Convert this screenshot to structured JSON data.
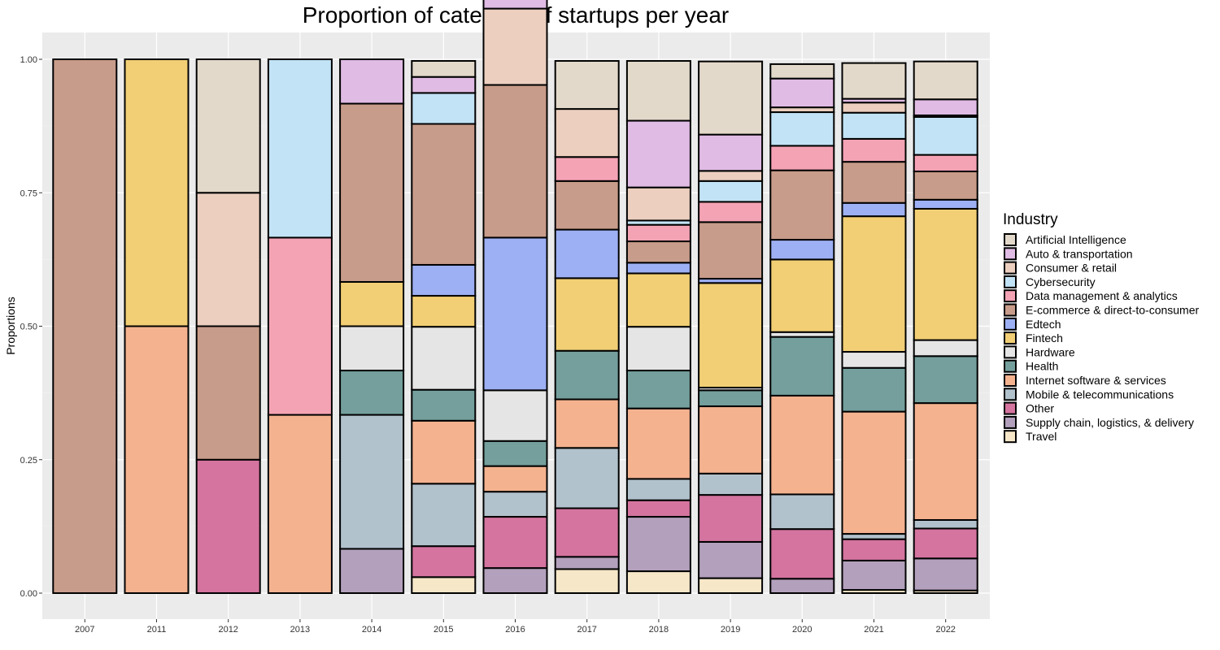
{
  "chart_data": {
    "type": "bar",
    "stacked": true,
    "normalized": true,
    "title": "Proportion of category of startups per year",
    "xlabel": "",
    "ylabel": "Proportions",
    "ylim": [
      0,
      1
    ],
    "y_ticks": [
      "0.00",
      "0.25",
      "0.50",
      "0.75",
      "1.00"
    ],
    "y_tick_values": [
      0,
      0.25,
      0.5,
      0.75,
      1
    ],
    "grid": true,
    "legend_position": "right",
    "legend_title": "Industry",
    "categories": [
      "2007",
      "2011",
      "2012",
      "2013",
      "2014",
      "2015",
      "2016",
      "2017",
      "2018",
      "2019",
      "2020",
      "2021",
      "2022"
    ],
    "series": [
      {
        "name": "Artificial Intelligence",
        "color": "#E3D9CA",
        "values": [
          0,
          0,
          0.25,
          0,
          0,
          0.03,
          0.047,
          0.09,
          0.112,
          0.137,
          0.027,
          0.067,
          0.071
        ]
      },
      {
        "name": "Auto & transportation",
        "color": "#E0BBE4",
        "values": [
          0,
          0,
          0,
          0,
          0.083,
          0.03,
          0.048,
          0,
          0.125,
          0.068,
          0.054,
          0.007,
          0.03
        ]
      },
      {
        "name": "Consumer & retail",
        "color": "#ECCFBF",
        "values": [
          0,
          0,
          0.25,
          0,
          0,
          0,
          0.143,
          0.09,
          0.062,
          0.019,
          0.009,
          0.019,
          0.003
        ]
      },
      {
        "name": "Cybersecurity",
        "color": "#C2E3F5",
        "values": [
          0,
          0,
          0,
          0.334,
          0,
          0.058,
          0,
          0,
          0.008,
          0.039,
          0.063,
          0.049,
          0.071
        ]
      },
      {
        "name": "Data management & analytics",
        "color": "#F4A3B5",
        "values": [
          0,
          0,
          0,
          0.332,
          0,
          0,
          0,
          0.045,
          0.031,
          0.038,
          0.046,
          0.043,
          0.031
        ]
      },
      {
        "name": "E-commerce & direct-to-consumer",
        "color": "#C89C8A",
        "values": [
          1,
          0,
          0.25,
          0,
          0.334,
          0.264,
          0.286,
          0.091,
          0.04,
          0.106,
          0.13,
          0.077,
          0.053
        ]
      },
      {
        "name": "Edtech",
        "color": "#9DB0F4",
        "values": [
          0,
          0,
          0,
          0,
          0,
          0.058,
          0.286,
          0.091,
          0.02,
          0.008,
          0.037,
          0.025,
          0.017
        ]
      },
      {
        "name": "Fintech",
        "color": "#F2CF75",
        "values": [
          0,
          0.5,
          0,
          0,
          0.083,
          0.058,
          0,
          0.136,
          0.1,
          0.196,
          0.136,
          0.254,
          0.246
        ]
      },
      {
        "name": "Hardware",
        "color": "#E5E5E5",
        "values": [
          0,
          0,
          0,
          0,
          0.083,
          0.118,
          0.095,
          0,
          0.082,
          0.005,
          0.009,
          0.03,
          0.03
        ]
      },
      {
        "name": "Health",
        "color": "#749F9C",
        "values": [
          0,
          0,
          0,
          0,
          0.083,
          0.058,
          0.047,
          0.091,
          0.071,
          0.03,
          0.11,
          0.082,
          0.088
        ]
      },
      {
        "name": "Internet software & services",
        "color": "#F4B28F",
        "values": [
          0,
          0.5,
          0,
          0.334,
          0,
          0.118,
          0.048,
          0.091,
          0.132,
          0.126,
          0.185,
          0.229,
          0.219
        ]
      },
      {
        "name": "Mobile & telecommunications",
        "color": "#B2C2CC",
        "values": [
          0,
          0,
          0,
          0,
          0.251,
          0.117,
          0.047,
          0.113,
          0.04,
          0.04,
          0.065,
          0.01,
          0.016
        ]
      },
      {
        "name": "Other",
        "color": "#D4749F",
        "values": [
          0,
          0,
          0.25,
          0,
          0,
          0.058,
          0.096,
          0.091,
          0.031,
          0.088,
          0.093,
          0.04,
          0.056
        ]
      },
      {
        "name": "Supply chain, logistics, & delivery",
        "color": "#B3A0BC",
        "values": [
          0,
          0,
          0,
          0,
          0.083,
          0,
          0.047,
          0.023,
          0.102,
          0.068,
          0.027,
          0.055,
          0.06
        ]
      },
      {
        "name": "Travel",
        "color": "#F6E7C8",
        "values": [
          0,
          0,
          0,
          0,
          0,
          0.03,
          0,
          0.045,
          0.041,
          0.028,
          0,
          0.006,
          0.005
        ]
      }
    ]
  }
}
